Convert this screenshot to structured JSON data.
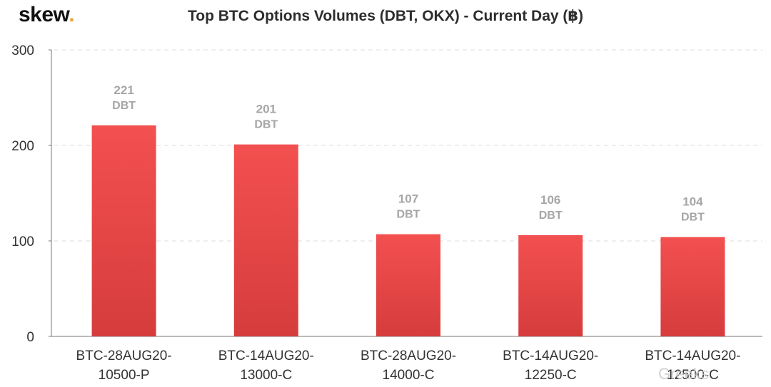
{
  "header": {
    "logo_text": "skew",
    "logo_dot": ".",
    "title": "Top BTC Options Volumes (DBT, OKX) - Current Day (฿)"
  },
  "watermark": {
    "text": "Greeks"
  },
  "colors": {
    "bar_top": "#f35050",
    "bar_bottom": "#d63c3c",
    "grid": "#dddddd",
    "axis_text": "#333333",
    "label_text": "#a6a6a6"
  },
  "chart_data": {
    "type": "bar",
    "categories": [
      [
        "BTC-28AUG20-",
        "10500-P"
      ],
      [
        "BTC-14AUG20-",
        "13000-C"
      ],
      [
        "BTC-28AUG20-",
        "14000-C"
      ],
      [
        "BTC-14AUG20-",
        "12250-C"
      ],
      [
        "BTC-14AUG20-",
        "12500-C"
      ]
    ],
    "values": [
      221,
      201,
      107,
      106,
      104
    ],
    "data_label_unit": "DBT",
    "yticks": [
      0,
      100,
      200,
      300
    ],
    "ylim": [
      0,
      300
    ],
    "grid": true,
    "legend": "none"
  }
}
